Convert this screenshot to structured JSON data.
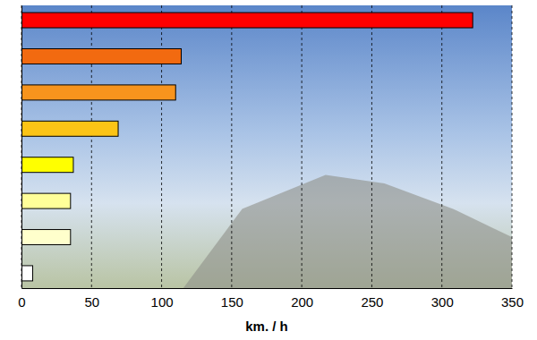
{
  "chart_data": {
    "type": "bar",
    "orientation": "horizontal",
    "categories": [
      null,
      null,
      null,
      null,
      null,
      null,
      null,
      null
    ],
    "values": [
      322,
      114,
      110,
      69,
      37,
      35,
      35,
      8
    ],
    "colors": [
      "#ff0000",
      "#f26a10",
      "#f7941d",
      "#fcc416",
      "#ffff00",
      "#ffff99",
      "#ffffcc",
      "#ffffff"
    ],
    "x_label": "km. / h",
    "xlim": [
      0,
      350
    ],
    "xticks": [
      0,
      50,
      100,
      150,
      200,
      250,
      300,
      350
    ],
    "grid": true,
    "tick_labels": "x"
  }
}
